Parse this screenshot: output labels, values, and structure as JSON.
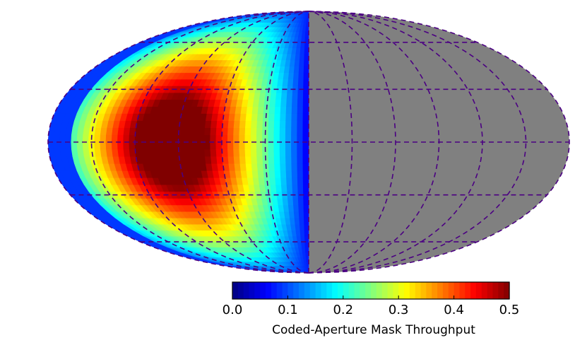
{
  "chart_data": {
    "type": "heatmap",
    "projection": "mollweide all-sky",
    "background_color": "#808080",
    "graticule": {
      "style": "dashed",
      "color": "#4b0082",
      "latitude_lines_deg": [
        -60,
        -30,
        0,
        30,
        60
      ],
      "longitude_lines_deg": [
        -180,
        -150,
        -120,
        -90,
        -60,
        -30,
        0,
        30,
        60,
        90,
        120,
        150,
        180
      ]
    },
    "colormap": "jet",
    "colorbar": {
      "label": "Coded-Aperture Mask Throughput",
      "range": [
        0.0,
        0.5
      ],
      "tick_labels": [
        "0.0",
        "0.1",
        "0.2",
        "0.3",
        "0.4",
        "0.5"
      ],
      "tick_values": [
        0.0,
        0.1,
        0.2,
        0.3,
        0.4,
        0.5
      ],
      "levels": 50
    },
    "field_of_view": {
      "covered_hemisphere": "left half of map (western longitudes)",
      "peak_throughput": 0.5,
      "peak_center_lon_deg": -95,
      "peak_center_lat_deg": 0,
      "edge_throughput": 0.05
    },
    "no_data_region": "right half of map (gray)"
  }
}
